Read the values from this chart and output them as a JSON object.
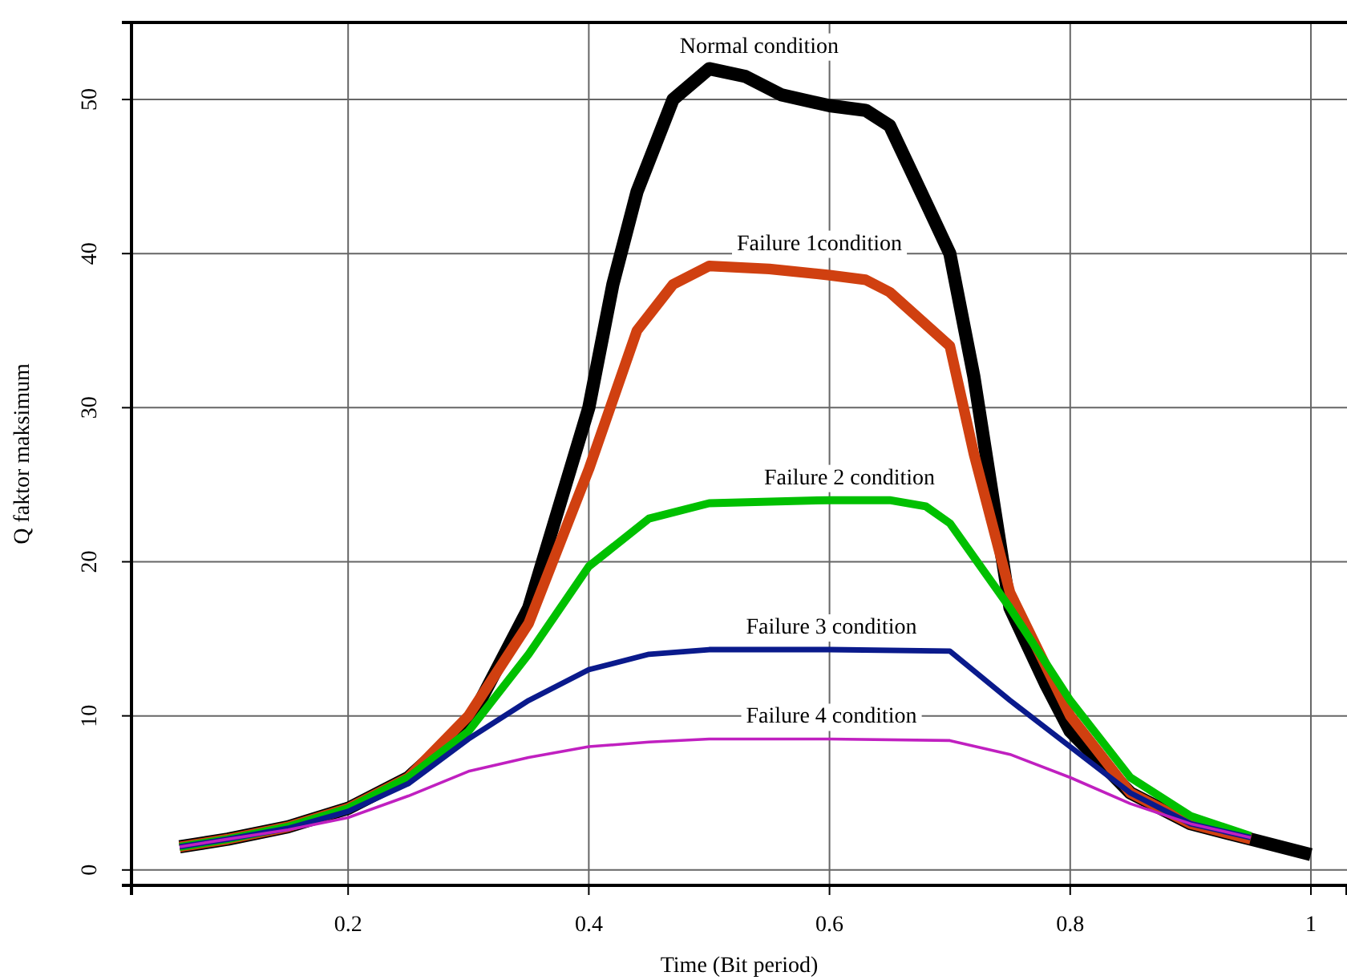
{
  "chart_data": {
    "type": "line",
    "xlabel": "Time (Bit period)",
    "ylabel": "Q faktor maksimum",
    "xlim": [
      0.02,
      1.03
    ],
    "ylim": [
      -1,
      55
    ],
    "xticks": [
      0.2,
      0.4,
      0.6,
      0.8,
      1
    ],
    "yticks": [
      0,
      10,
      20,
      30,
      40,
      50
    ],
    "grid": true,
    "legend": false,
    "marker": "none",
    "line_style": "solid",
    "series": [
      {
        "name": "Normal condition",
        "color": "#000000",
        "x": [
          0.06,
          0.1,
          0.15,
          0.2,
          0.25,
          0.3,
          0.35,
          0.4,
          0.42,
          0.44,
          0.47,
          0.5,
          0.53,
          0.56,
          0.6,
          0.63,
          0.65,
          0.67,
          0.7,
          0.72,
          0.75,
          0.78,
          0.8,
          0.85,
          0.9,
          0.95,
          1.0
        ],
        "values": [
          1.5,
          2.0,
          2.8,
          4.0,
          6.0,
          9.5,
          17,
          30,
          38,
          44,
          50,
          52,
          51.5,
          50.3,
          49.6,
          49.3,
          48.3,
          45,
          40,
          32,
          17,
          12,
          9,
          5,
          3,
          2,
          1.0
        ]
      },
      {
        "name": "Failure 1condition",
        "color": "#d04010",
        "x": [
          0.06,
          0.1,
          0.15,
          0.2,
          0.25,
          0.3,
          0.35,
          0.4,
          0.44,
          0.47,
          0.5,
          0.55,
          0.6,
          0.63,
          0.65,
          0.7,
          0.72,
          0.75,
          0.8,
          0.85,
          0.9,
          0.95
        ],
        "values": [
          1.5,
          2.0,
          2.8,
          4.0,
          6.0,
          10,
          16,
          26,
          35,
          38,
          39.2,
          39,
          38.6,
          38.3,
          37.5,
          34,
          27,
          18,
          10,
          5,
          3,
          2
        ]
      },
      {
        "name": "Failure 2 condition",
        "color": "#00c000",
        "x": [
          0.06,
          0.1,
          0.15,
          0.2,
          0.25,
          0.3,
          0.35,
          0.4,
          0.45,
          0.5,
          0.6,
          0.65,
          0.68,
          0.7,
          0.75,
          0.8,
          0.85,
          0.9,
          0.95
        ],
        "values": [
          1.5,
          2.0,
          2.8,
          4.0,
          6.0,
          9,
          14,
          19.7,
          22.8,
          23.8,
          24,
          24,
          23.6,
          22.5,
          17,
          11,
          6,
          3.5,
          2.2
        ]
      },
      {
        "name": "Failure 3 condition",
        "color": "#0a1a8c",
        "x": [
          0.06,
          0.1,
          0.15,
          0.2,
          0.25,
          0.3,
          0.35,
          0.4,
          0.45,
          0.5,
          0.6,
          0.7,
          0.75,
          0.8,
          0.85,
          0.9,
          0.95
        ],
        "values": [
          1.5,
          2.0,
          2.7,
          3.8,
          5.6,
          8.5,
          11,
          13,
          14,
          14.3,
          14.3,
          14.2,
          11,
          8,
          5,
          3,
          2.1
        ]
      },
      {
        "name": "Failure 4 condition",
        "color": "#c020c0",
        "x": [
          0.06,
          0.1,
          0.15,
          0.2,
          0.25,
          0.3,
          0.35,
          0.4,
          0.45,
          0.5,
          0.6,
          0.7,
          0.75,
          0.8,
          0.85,
          0.9,
          0.95
        ],
        "values": [
          1.5,
          2,
          2.6,
          3.4,
          4.8,
          6.4,
          7.3,
          8,
          8.3,
          8.5,
          8.5,
          8.4,
          7.5,
          6,
          4.3,
          3,
          2.1
        ]
      }
    ]
  }
}
